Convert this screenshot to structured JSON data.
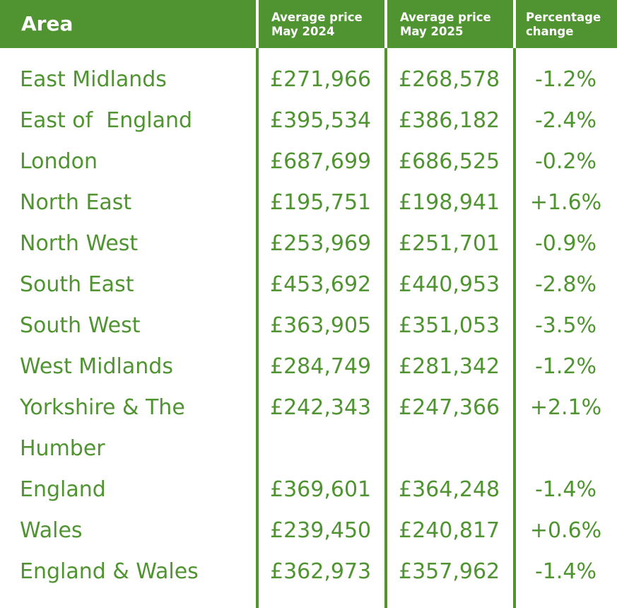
{
  "header": {
    "area": "Area",
    "col2_line1": "Average price",
    "col2_line2": "May 2024",
    "col3_line1": "Average price",
    "col3_line2": "May 2025",
    "col4_line1": "Percentage",
    "col4_line2": "change"
  },
  "colors": {
    "accent": "#4f9431",
    "header_text": "#ffffff"
  },
  "rows": [
    {
      "area": "East Midlands",
      "may2024": "£271,966",
      "may2025": "£268,578",
      "change": "-1.2%"
    },
    {
      "area": "East of  England",
      "may2024": "£395,534",
      "may2025": "£386,182",
      "change": "-2.4%"
    },
    {
      "area": "London",
      "may2024": "£687,699",
      "may2025": "£686,525",
      "change": "-0.2%"
    },
    {
      "area": "North East",
      "may2024": "£195,751",
      "may2025": "£198,941",
      "change": "+1.6%"
    },
    {
      "area": "North West",
      "may2024": "£253,969",
      "may2025": "£251,701",
      "change": "-0.9%"
    },
    {
      "area": "South East",
      "may2024": "£453,692",
      "may2025": "£440,953",
      "change": "-2.8%"
    },
    {
      "area": "South West",
      "may2024": "£363,905",
      "may2025": "£351,053",
      "change": "-3.5%"
    },
    {
      "area": "West Midlands",
      "may2024": "£284,749",
      "may2025": "£281,342",
      "change": "-1.2%"
    },
    {
      "area": "Yorkshire & The Humber",
      "may2024": "£242,343",
      "may2025": "£247,366",
      "change": "+2.1%"
    },
    {
      "area": "England",
      "may2024": "£369,601",
      "may2025": "£364,248",
      "change": "-1.4%"
    },
    {
      "area": "Wales",
      "may2024": "£239,450",
      "may2025": "£240,817",
      "change": "+0.6%"
    },
    {
      "area": "England & Wales",
      "may2024": "£362,973",
      "may2025": "£357,962",
      "change": "-1.4%"
    }
  ]
}
